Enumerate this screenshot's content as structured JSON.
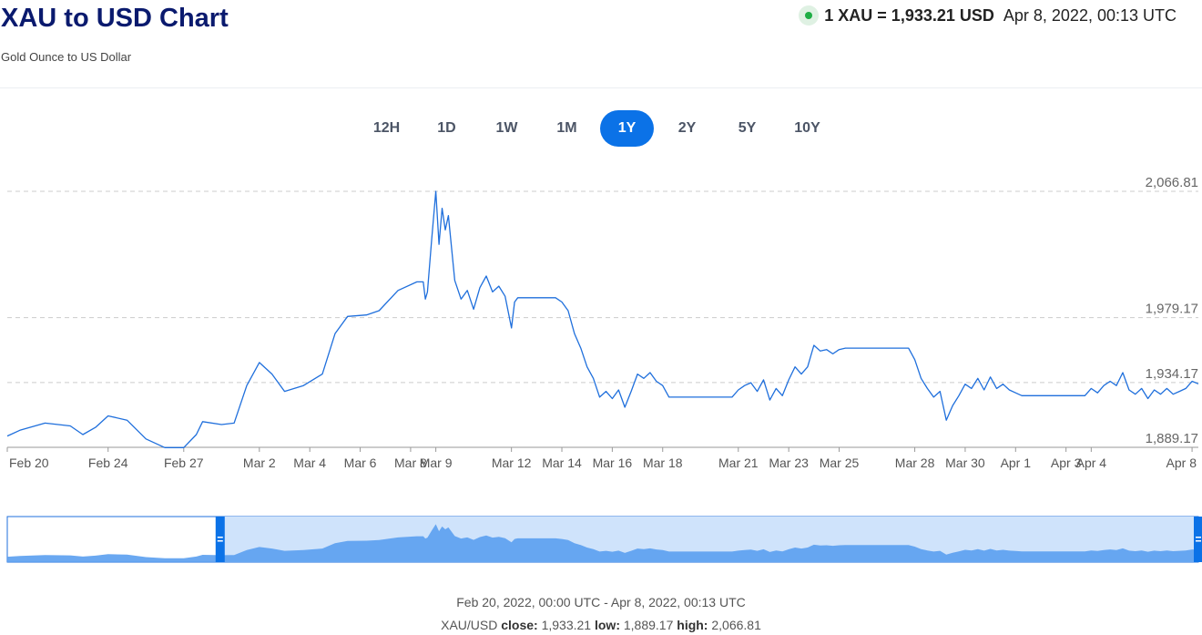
{
  "header": {
    "title": "XAU to USD Chart",
    "subtitle": "Gold Ounce to US Dollar",
    "rate": "1 XAU = 1,933.21 USD",
    "timestamp": "Apr 8, 2022, 00:13 UTC",
    "live_icon": "live-status-dot",
    "live_color": "#1fae45"
  },
  "ranges": [
    {
      "label": "12H",
      "active": false
    },
    {
      "label": "1D",
      "active": false
    },
    {
      "label": "1W",
      "active": false
    },
    {
      "label": "1M",
      "active": false
    },
    {
      "label": "1Y",
      "active": true
    },
    {
      "label": "2Y",
      "active": false
    },
    {
      "label": "5Y",
      "active": false
    },
    {
      "label": "10Y",
      "active": false
    }
  ],
  "footer": {
    "range_text": "Feb 20, 2022, 00:00 UTC - Apr 8, 2022, 00:13 UTC",
    "pair": "XAU/USD",
    "close_label": "close:",
    "close_value": "1,933.21",
    "low_label": "low:",
    "low_value": "1,889.17",
    "high_label": "high:",
    "high_value": "2,066.81"
  },
  "navigator": {
    "handle_icon": "drag-grip",
    "selection_start_date": "Feb 27"
  },
  "colors": {
    "line": "#1f6fdc",
    "accent": "#0b72e7",
    "navigator_fill": "#5a9ff0",
    "navigator_selection": "#cfe3fb",
    "grid": "#cccccc"
  },
  "chart_data": {
    "type": "line",
    "x_start": "2022-02-20",
    "x_end": "2022-04-08",
    "ylim": [
      1889.17,
      2066.81
    ],
    "y_ticks": [
      2066.81,
      1979.17,
      1934.17,
      1889.17
    ],
    "y_tick_labels": [
      "2,066.81",
      "1,979.17",
      "1,934.17",
      "1,889.17"
    ],
    "x_ticks": [
      {
        "label": "Feb 20",
        "date": "2022-02-20"
      },
      {
        "label": "Feb 24",
        "date": "2022-02-24"
      },
      {
        "label": "Feb 27",
        "date": "2022-02-27"
      },
      {
        "label": "Mar 2",
        "date": "2022-03-02"
      },
      {
        "label": "Mar 4",
        "date": "2022-03-04"
      },
      {
        "label": "Mar 6",
        "date": "2022-03-06"
      },
      {
        "label": "Mar 8",
        "date": "2022-03-08"
      },
      {
        "label": "Mar 9",
        "date": "2022-03-09"
      },
      {
        "label": "Mar 12",
        "date": "2022-03-12"
      },
      {
        "label": "Mar 14",
        "date": "2022-03-14"
      },
      {
        "label": "Mar 16",
        "date": "2022-03-16"
      },
      {
        "label": "Mar 18",
        "date": "2022-03-18"
      },
      {
        "label": "Mar 21",
        "date": "2022-03-21"
      },
      {
        "label": "Mar 23",
        "date": "2022-03-23"
      },
      {
        "label": "Mar 25",
        "date": "2022-03-25"
      },
      {
        "label": "Mar 28",
        "date": "2022-03-28"
      },
      {
        "label": "Mar 30",
        "date": "2022-03-30"
      },
      {
        "label": "Apr 1",
        "date": "2022-04-01"
      },
      {
        "label": "Apr 3",
        "date": "2022-04-03"
      },
      {
        "label": "Apr 4",
        "date": "2022-04-04"
      },
      {
        "label": "Apr 8",
        "date": "2022-04-08"
      }
    ],
    "grid": true,
    "series": [
      {
        "values": [
          [
            "2022-02-20 00:00",
            1897
          ],
          [
            "2022-02-20 12:00",
            1901
          ],
          [
            "2022-02-21 12:00",
            1906
          ],
          [
            "2022-02-22 12:00",
            1904
          ],
          [
            "2022-02-23 00:00",
            1898
          ],
          [
            "2022-02-23 12:00",
            1903
          ],
          [
            "2022-02-24 00:00",
            1911
          ],
          [
            "2022-02-24 18:00",
            1908
          ],
          [
            "2022-02-25 12:00",
            1895
          ],
          [
            "2022-02-26 06:00",
            1889
          ],
          [
            "2022-02-27 00:00",
            1889
          ],
          [
            "2022-02-27 12:00",
            1898
          ],
          [
            "2022-02-27 18:00",
            1907
          ],
          [
            "2022-02-28 12:00",
            1905
          ],
          [
            "2022-03-01 00:00",
            1906
          ],
          [
            "2022-03-01 12:00",
            1932
          ],
          [
            "2022-03-02 00:00",
            1948
          ],
          [
            "2022-03-02 12:00",
            1940
          ],
          [
            "2022-03-03 00:00",
            1928
          ],
          [
            "2022-03-03 18:00",
            1932
          ],
          [
            "2022-03-04 12:00",
            1940
          ],
          [
            "2022-03-05 00:00",
            1968
          ],
          [
            "2022-03-05 12:00",
            1980
          ],
          [
            "2022-03-06 06:00",
            1981
          ],
          [
            "2022-03-06 18:00",
            1984
          ],
          [
            "2022-03-07 12:00",
            1998
          ],
          [
            "2022-03-08 06:00",
            2004
          ],
          [
            "2022-03-08 12:00",
            2004
          ],
          [
            "2022-03-08 14:00",
            1992
          ],
          [
            "2022-03-08 16:00",
            1997
          ],
          [
            "2022-03-08 20:00",
            2033
          ],
          [
            "2022-03-09 00:00",
            2066.81
          ],
          [
            "2022-03-09 03:00",
            2030
          ],
          [
            "2022-03-09 06:00",
            2055
          ],
          [
            "2022-03-09 09:00",
            2040
          ],
          [
            "2022-03-09 12:00",
            2050
          ],
          [
            "2022-03-09 18:00",
            2005
          ],
          [
            "2022-03-10 00:00",
            1992
          ],
          [
            "2022-03-10 06:00",
            1998
          ],
          [
            "2022-03-10 12:00",
            1985
          ],
          [
            "2022-03-10 18:00",
            2000
          ],
          [
            "2022-03-11 00:00",
            2008
          ],
          [
            "2022-03-11 06:00",
            1997
          ],
          [
            "2022-03-11 12:00",
            2001
          ],
          [
            "2022-03-11 18:00",
            1994
          ],
          [
            "2022-03-12 00:00",
            1972
          ],
          [
            "2022-03-12 03:00",
            1990
          ],
          [
            "2022-03-12 06:00",
            1993
          ],
          [
            "2022-03-13 18:00",
            1993
          ],
          [
            "2022-03-14 00:00",
            1990
          ],
          [
            "2022-03-14 06:00",
            1984
          ],
          [
            "2022-03-14 12:00",
            1968
          ],
          [
            "2022-03-14 18:00",
            1958
          ],
          [
            "2022-03-15 00:00",
            1945
          ],
          [
            "2022-03-15 06:00",
            1937
          ],
          [
            "2022-03-15 12:00",
            1924
          ],
          [
            "2022-03-15 18:00",
            1928
          ],
          [
            "2022-03-16 00:00",
            1923
          ],
          [
            "2022-03-16 06:00",
            1929
          ],
          [
            "2022-03-16 12:00",
            1917
          ],
          [
            "2022-03-16 18:00",
            1928
          ],
          [
            "2022-03-17 00:00",
            1940
          ],
          [
            "2022-03-17 06:00",
            1937
          ],
          [
            "2022-03-17 12:00",
            1941
          ],
          [
            "2022-03-17 18:00",
            1935
          ],
          [
            "2022-03-18 00:00",
            1932
          ],
          [
            "2022-03-18 06:00",
            1924
          ],
          [
            "2022-03-20 18:00",
            1924
          ],
          [
            "2022-03-21 00:00",
            1929
          ],
          [
            "2022-03-21 06:00",
            1932
          ],
          [
            "2022-03-21 12:00",
            1934
          ],
          [
            "2022-03-21 18:00",
            1928
          ],
          [
            "2022-03-22 00:00",
            1936
          ],
          [
            "2022-03-22 06:00",
            1922
          ],
          [
            "2022-03-22 12:00",
            1930
          ],
          [
            "2022-03-22 18:00",
            1925
          ],
          [
            "2022-03-23 00:00",
            1936
          ],
          [
            "2022-03-23 06:00",
            1945
          ],
          [
            "2022-03-23 12:00",
            1940
          ],
          [
            "2022-03-23 18:00",
            1945
          ],
          [
            "2022-03-24 00:00",
            1960
          ],
          [
            "2022-03-24 06:00",
            1956
          ],
          [
            "2022-03-24 12:00",
            1957
          ],
          [
            "2022-03-24 18:00",
            1954
          ],
          [
            "2022-03-25 00:00",
            1957
          ],
          [
            "2022-03-25 06:00",
            1958
          ],
          [
            "2022-03-27 18:00",
            1958
          ],
          [
            "2022-03-28 00:00",
            1950
          ],
          [
            "2022-03-28 06:00",
            1937
          ],
          [
            "2022-03-28 12:00",
            1930
          ],
          [
            "2022-03-28 18:00",
            1924
          ],
          [
            "2022-03-29 00:00",
            1928
          ],
          [
            "2022-03-29 06:00",
            1908
          ],
          [
            "2022-03-29 12:00",
            1918
          ],
          [
            "2022-03-29 18:00",
            1925
          ],
          [
            "2022-03-30 00:00",
            1933
          ],
          [
            "2022-03-30 06:00",
            1930
          ],
          [
            "2022-03-30 12:00",
            1937
          ],
          [
            "2022-03-30 18:00",
            1929
          ],
          [
            "2022-03-31 00:00",
            1938
          ],
          [
            "2022-03-31 06:00",
            1930
          ],
          [
            "2022-03-31 12:00",
            1933
          ],
          [
            "2022-03-31 18:00",
            1929
          ],
          [
            "2022-04-01 00:00",
            1927
          ],
          [
            "2022-04-01 06:00",
            1925
          ],
          [
            "2022-04-03 18:00",
            1925
          ],
          [
            "2022-04-04 00:00",
            1930
          ],
          [
            "2022-04-04 06:00",
            1927
          ],
          [
            "2022-04-04 12:00",
            1932
          ],
          [
            "2022-04-04 18:00",
            1935
          ],
          [
            "2022-04-05 00:00",
            1932
          ],
          [
            "2022-04-05 06:00",
            1941
          ],
          [
            "2022-04-05 12:00",
            1929
          ],
          [
            "2022-04-05 18:00",
            1926
          ],
          [
            "2022-04-06 00:00",
            1930
          ],
          [
            "2022-04-06 06:00",
            1923
          ],
          [
            "2022-04-06 12:00",
            1929
          ],
          [
            "2022-04-06 18:00",
            1926
          ],
          [
            "2022-04-07 00:00",
            1930
          ],
          [
            "2022-04-07 06:00",
            1926
          ],
          [
            "2022-04-07 12:00",
            1928
          ],
          [
            "2022-04-07 18:00",
            1930
          ],
          [
            "2022-04-08 00:00",
            1935
          ],
          [
            "2022-04-08 06:00",
            1933.21
          ]
        ]
      }
    ]
  }
}
